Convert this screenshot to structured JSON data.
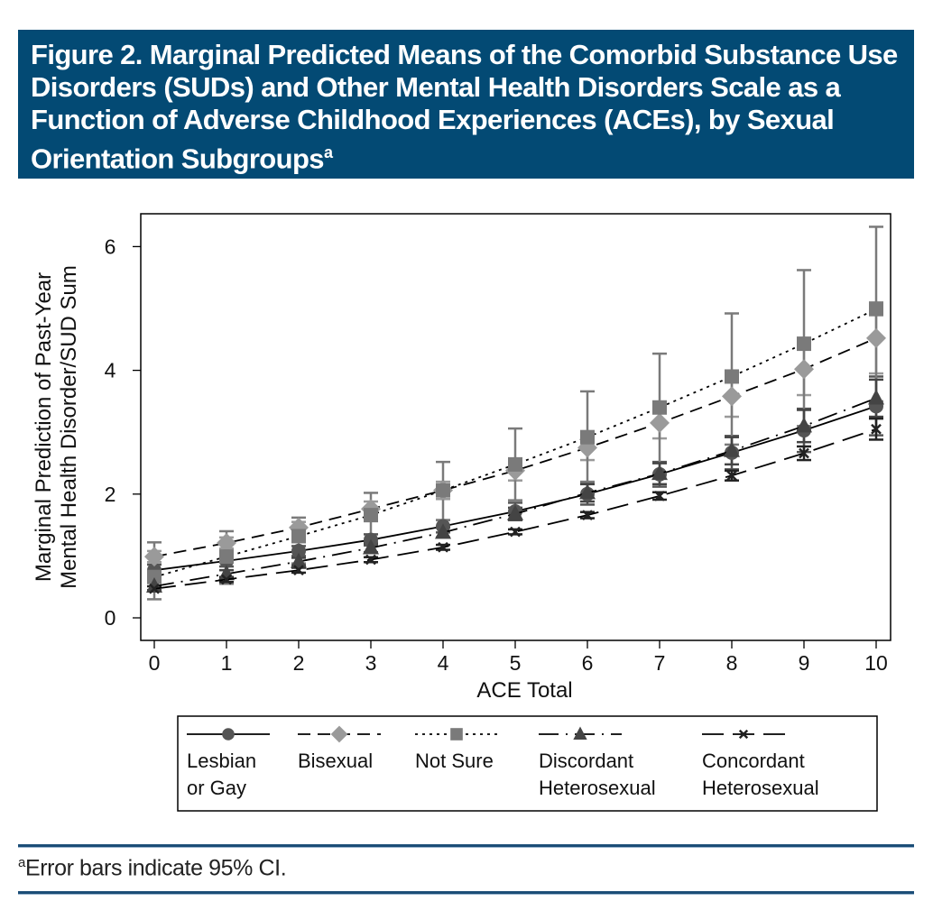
{
  "figure": {
    "title": "Figure 2. Marginal Predicted Means of the Comorbid Substance Use Disorders (SUDs) and Other Mental Health Disorders Scale as a Function of Adverse Childhood Experiences (ACEs), by Sexual Orientation Subgroups",
    "title_superscript": "a",
    "footnote_marker": "a",
    "footnote": "Error bars indicate 95% CI.",
    "colors": {
      "title_bg": "#034a74",
      "rule": "#1b4d77"
    }
  },
  "chart_data": {
    "type": "line",
    "title": "",
    "xlabel": "ACE Total",
    "ylabel": [
      "Marginal Prediction of Past-Year",
      "Mental Health Disorder/SUD Sum"
    ],
    "x": [
      0,
      1,
      2,
      3,
      4,
      5,
      6,
      7,
      8,
      9,
      10
    ],
    "xlim": [
      0,
      10
    ],
    "ylim": [
      -0.2,
      6.5
    ],
    "xticks": [
      "0",
      "1",
      "2",
      "3",
      "4",
      "5",
      "6",
      "7",
      "8",
      "9",
      "10"
    ],
    "yticks": [
      "0",
      "2",
      "4",
      "6"
    ],
    "grid": false,
    "legend": "bottom",
    "series": [
      {
        "name": "Lesbian or Gay",
        "marker": "circle",
        "line": "solid",
        "color": "#555555",
        "values": [
          0.77,
          0.92,
          1.08,
          1.26,
          1.48,
          1.72,
          2.0,
          2.32,
          2.67,
          3.03,
          3.42
        ],
        "ci_low": [
          0.68,
          0.83,
          1.0,
          1.17,
          1.38,
          1.58,
          1.83,
          2.12,
          2.4,
          2.68,
          2.95
        ],
        "ci_high": [
          0.86,
          1.01,
          1.16,
          1.35,
          1.58,
          1.86,
          2.17,
          2.52,
          2.94,
          3.38,
          3.9
        ]
      },
      {
        "name": "Bisexual",
        "marker": "diamond",
        "line": "dashed",
        "color": "#9a9a9a",
        "values": [
          0.99,
          1.21,
          1.46,
          1.76,
          2.06,
          2.38,
          2.75,
          3.15,
          3.58,
          4.02,
          4.52
        ],
        "ci_low": [
          0.9,
          1.12,
          1.37,
          1.64,
          1.92,
          2.22,
          2.55,
          2.9,
          3.25,
          3.6,
          3.95
        ],
        "ci_high": [
          1.08,
          1.3,
          1.55,
          1.88,
          2.2,
          2.54,
          2.95,
          3.4,
          3.9,
          4.45,
          5.1
        ]
      },
      {
        "name": "Not Sure",
        "marker": "square",
        "line": "dotted",
        "color": "#7a7a7a",
        "values": [
          0.66,
          0.99,
          1.32,
          1.66,
          2.06,
          2.48,
          2.92,
          3.4,
          3.9,
          4.43,
          4.99
        ],
        "ci_low": [
          0.3,
          0.55,
          0.88,
          1.22,
          1.58,
          1.9,
          2.2,
          2.5,
          2.8,
          3.1,
          3.5
        ],
        "ci_high": [
          1.22,
          1.4,
          1.62,
          2.02,
          2.52,
          3.06,
          3.66,
          4.27,
          4.92,
          5.62,
          6.32
        ]
      },
      {
        "name": "Discordant Heterosexual",
        "marker": "triangle",
        "line": "dashdot",
        "color": "#444444",
        "values": [
          0.51,
          0.71,
          0.91,
          1.13,
          1.38,
          1.68,
          2.02,
          2.33,
          2.7,
          3.1,
          3.55
        ],
        "ci_low": [
          0.45,
          0.65,
          0.85,
          1.06,
          1.3,
          1.58,
          1.88,
          2.16,
          2.48,
          2.84,
          3.25
        ],
        "ci_high": [
          0.57,
          0.77,
          0.97,
          1.2,
          1.46,
          1.78,
          2.16,
          2.5,
          2.92,
          3.36,
          3.85
        ]
      },
      {
        "name": "Concordant Heterosexual",
        "marker": "x",
        "line": "longdash",
        "color": "#222222",
        "values": [
          0.47,
          0.62,
          0.77,
          0.94,
          1.14,
          1.39,
          1.66,
          1.97,
          2.3,
          2.66,
          3.05
        ],
        "ci_low": [
          0.43,
          0.58,
          0.73,
          0.9,
          1.1,
          1.35,
          1.61,
          1.91,
          2.22,
          2.55,
          2.88
        ],
        "ci_high": [
          0.51,
          0.66,
          0.81,
          0.98,
          1.18,
          1.43,
          1.71,
          2.03,
          2.38,
          2.77,
          3.22
        ]
      }
    ],
    "legend_labels": [
      [
        "Lesbian",
        "or Gay"
      ],
      [
        "Bisexual"
      ],
      [
        "Not Sure"
      ],
      [
        "Discordant",
        "Heterosexual"
      ],
      [
        "Concordant",
        "Heterosexual"
      ]
    ]
  }
}
